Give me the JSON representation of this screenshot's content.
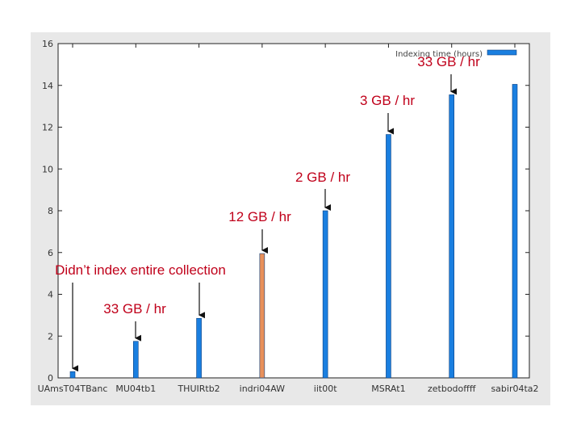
{
  "chart_data": {
    "type": "bar",
    "categories": [
      "UAmsT04TBanc",
      "MU04tb1",
      "THUIRtb2",
      "indri04AW",
      "iit00t",
      "MSRAt1",
      "zetbodoffff",
      "sabir04ta2"
    ],
    "series": [
      {
        "name": "Indexing time (hours)",
        "values": [
          0.3,
          1.75,
          2.85,
          5.95,
          8.0,
          11.65,
          13.55,
          14.05
        ]
      }
    ],
    "bar_colors": [
      "#1a7fe0",
      "#1a7fe0",
      "#1a7fe0",
      "#e8905a",
      "#1a7fe0",
      "#1a7fe0",
      "#1a7fe0",
      "#1a7fe0"
    ],
    "ylim": [
      0,
      16
    ],
    "yticks": [
      0,
      2,
      4,
      6,
      8,
      10,
      12,
      14,
      16
    ],
    "xlabel": "",
    "ylabel": "",
    "title": "",
    "grid": false,
    "legend_position": "top-right",
    "annotations": [
      {
        "text": "Didn’t index entire collection",
        "target": "UAmsT04TBanc"
      },
      {
        "text": "33 GB / hr",
        "target": "MU04tb1"
      },
      {
        "text": "",
        "target": "THUIRtb2"
      },
      {
        "text": "12 GB / hr",
        "target": "indri04AW"
      },
      {
        "text": "2 GB / hr",
        "target": "iit00t"
      },
      {
        "text": "3 GB / hr",
        "target": "MSRAt1"
      },
      {
        "text": "33 GB / hr",
        "target": "zetbodoffff"
      }
    ],
    "colors": {
      "frame_bg": "#e8e8e8",
      "axis": "#222222",
      "annotation": "#c0001a",
      "arrow": "#111111"
    }
  }
}
